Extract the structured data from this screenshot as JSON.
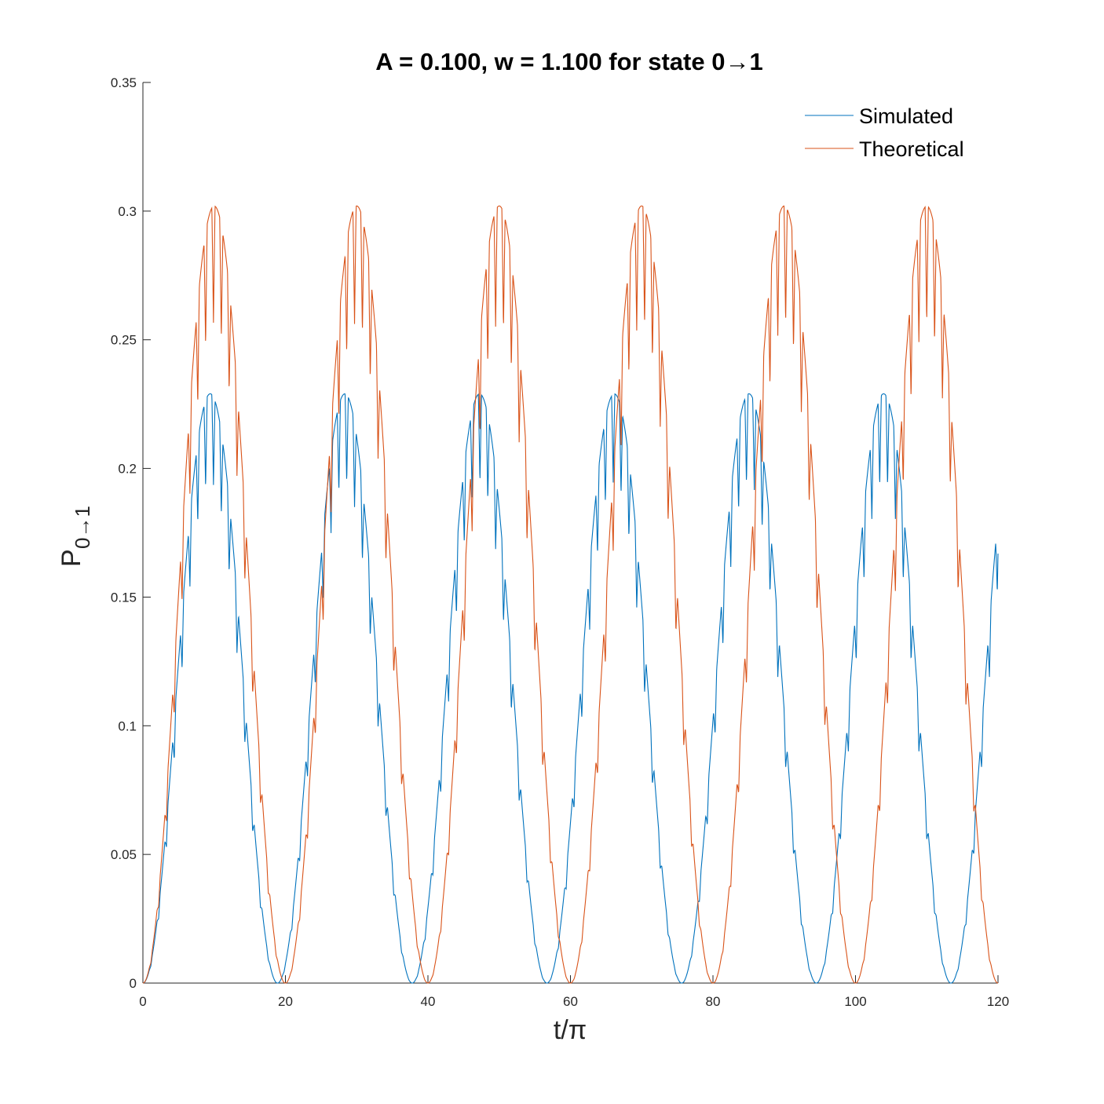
{
  "chart_data": {
    "type": "line",
    "title": "A = 0.100, w = 1.100 for state 0→1",
    "xlabel": "t/π",
    "ylabel_main": "P",
    "ylabel_sub": "0→1",
    "xlim": [
      0,
      120
    ],
    "ylim": [
      0,
      0.35
    ],
    "xticks": [
      "0",
      "20",
      "40",
      "60",
      "80",
      "100",
      "120"
    ],
    "yticks": [
      "0",
      "0.05",
      "0.1",
      "0.15",
      "0.2",
      "0.25",
      "0.3",
      "0.35"
    ],
    "grid": false,
    "legend_position": "top-right",
    "series": [
      {
        "name": "Simulated",
        "color": "#0072BD",
        "peak": 0.229,
        "period": 18.9,
        "ripple_period": 1.1,
        "ripple_amplitude": 0.25,
        "ends_at": 0.187
      },
      {
        "name": "Theoretical",
        "color": "#D95319",
        "peak": 0.302,
        "period": 20,
        "ripple_period": 1.1,
        "ripple_amplitude": 0.25,
        "ends_at": 0.001
      }
    ]
  }
}
